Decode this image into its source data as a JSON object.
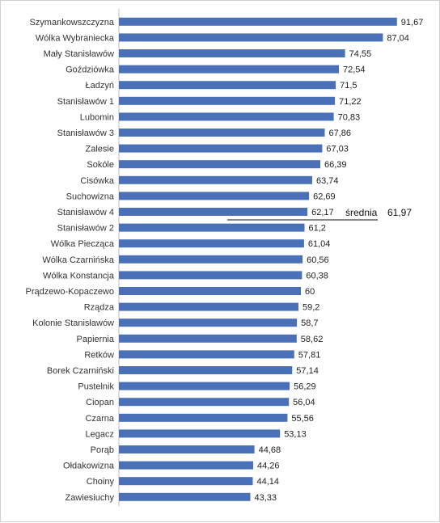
{
  "chart_data": {
    "type": "bar",
    "orientation": "horizontal",
    "categories": [
      "Szymankowszczyzna",
      "Wólka Wybraniecka",
      "Mały Stanisławów",
      "Goździówka",
      "Ładzyń",
      "Stanisławów 1",
      "Lubomin",
      "Stanisławów 3",
      "Zalesie",
      "Sokóle",
      "Cisówka",
      "Suchowizna",
      "Stanisławów 4",
      "Stanisławów 2",
      "Wólka Piecząca",
      "Wólka Czarnińska",
      "Wólka Konstancja",
      "Prądzewo-Kopaczewo",
      "Rządza",
      "Kolonie Stanisławów",
      "Papiernia",
      "Retków",
      "Borek Czarniński",
      "Pustelnik",
      "Ciopan",
      "Czarna",
      "Legacz",
      "Porąb",
      "Ołdakowizna",
      "Choiny",
      "Zawiesiuchy"
    ],
    "values": [
      91.67,
      87.04,
      74.55,
      72.54,
      71.5,
      71.22,
      70.83,
      67.86,
      67.03,
      66.39,
      63.74,
      62.69,
      62.17,
      61.2,
      61.04,
      60.56,
      60.38,
      60,
      59.2,
      58.7,
      58.62,
      57.81,
      57.14,
      56.29,
      56.04,
      55.56,
      53.13,
      44.68,
      44.26,
      44.14,
      43.33
    ],
    "value_labels": [
      "91,67",
      "87,04",
      "74,55",
      "72,54",
      "71,5",
      "71,22",
      "70,83",
      "67,86",
      "67,03",
      "66,39",
      "63,74",
      "62,69",
      "62,17",
      "61,2",
      "61,04",
      "60,56",
      "60,38",
      "60",
      "59,2",
      "58,7",
      "58,62",
      "57,81",
      "57,14",
      "56,29",
      "56,04",
      "55,56",
      "53,13",
      "44,68",
      "44,26",
      "44,14",
      "43,33"
    ],
    "xlim": [
      0,
      100
    ],
    "bar_color": "#4a70b8",
    "axis_color": "#bfbfbf",
    "grid": false,
    "title": "",
    "xlabel": "",
    "ylabel": "",
    "annotation": {
      "label": "średnia",
      "value_label": "61,97",
      "value": 61.97
    }
  }
}
